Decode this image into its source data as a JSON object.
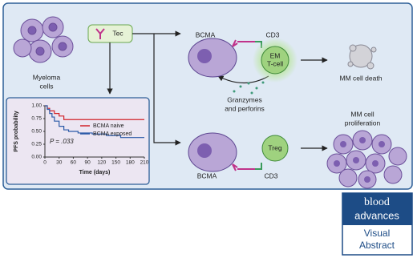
{
  "labels": {
    "myeloma": [
      "Myeloma",
      "cells"
    ],
    "tec": "Tec",
    "bcma_top": "BCMA",
    "cd3_top": "CD3",
    "em_tcell": [
      "EM",
      "T-cell"
    ],
    "granzymes": [
      "Granzymes",
      "and perforins"
    ],
    "death": "MM cell death",
    "proliferation": [
      "MM cell",
      "proliferation"
    ],
    "bcma_bottom": "BCMA",
    "cd3_bottom": "CD3",
    "treg": "Treg"
  },
  "logo": {
    "brand": [
      "blood",
      "advances"
    ],
    "caption": [
      "Visual",
      "Abstract"
    ]
  },
  "chart_data": {
    "type": "line",
    "step": true,
    "xlabel": "Time (days)",
    "ylabel": "PFS probability",
    "annotation": "P = .033",
    "xlim": [
      0,
      210
    ],
    "ylim": [
      0,
      1
    ],
    "xticks": [
      0,
      30,
      60,
      90,
      120,
      150,
      180,
      210
    ],
    "yticks": [
      {
        "value": 0,
        "label": "0.00"
      },
      0.25,
      {
        "value": 0.5,
        "label": "0.50"
      },
      0.75,
      {
        "value": 1,
        "label": "1.00"
      }
    ],
    "series": [
      {
        "name": "BCMA naive",
        "color": "#d2232a",
        "x": [
          0,
          5,
          10,
          20,
          30,
          40,
          210
        ],
        "values": [
          1,
          0.95,
          0.9,
          0.85,
          0.8,
          0.73,
          0.73
        ]
      },
      {
        "name": "BCMA exposed",
        "color": "#2b5aa8",
        "x": [
          0,
          5,
          10,
          15,
          20,
          30,
          40,
          50,
          70,
          100,
          130,
          160,
          210
        ],
        "values": [
          1,
          0.93,
          0.85,
          0.78,
          0.7,
          0.6,
          0.53,
          0.5,
          0.47,
          0.45,
          0.42,
          0.38,
          0.38
        ]
      }
    ]
  }
}
